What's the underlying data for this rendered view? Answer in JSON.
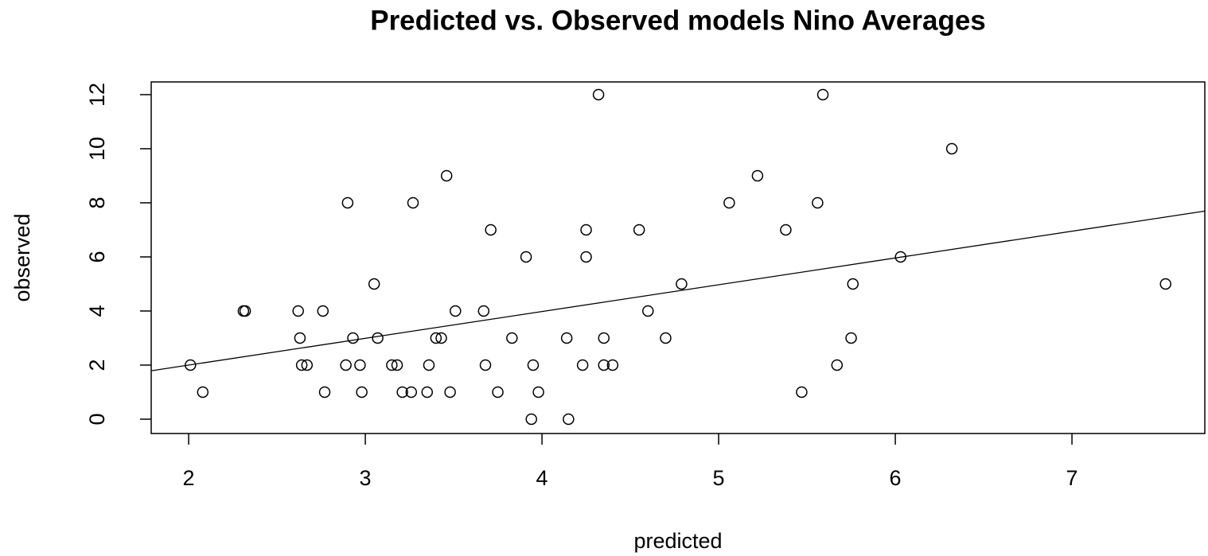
{
  "chart_data": {
    "type": "scatter",
    "title": "Predicted vs. Observed models Nino Averages",
    "xlabel": "predicted",
    "ylabel": "observed",
    "x": [
      2.01,
      2.08,
      2.31,
      2.32,
      2.62,
      2.63,
      2.64,
      2.67,
      2.76,
      2.77,
      2.89,
      2.9,
      2.93,
      2.97,
      2.98,
      3.05,
      3.07,
      3.15,
      3.18,
      3.21,
      3.26,
      3.27,
      3.35,
      3.36,
      3.4,
      3.43,
      3.46,
      3.48,
      3.51,
      3.67,
      3.68,
      3.71,
      3.75,
      3.83,
      3.91,
      3.94,
      3.95,
      3.98,
      4.14,
      4.15,
      4.23,
      4.25,
      4.25,
      4.32,
      4.35,
      4.35,
      4.4,
      4.55,
      4.6,
      4.7,
      4.79,
      5.06,
      5.22,
      5.38,
      5.47,
      5.56,
      5.59,
      5.67,
      5.75,
      5.76,
      6.03,
      6.32,
      7.53
    ],
    "values": [
      2,
      1,
      4,
      4,
      4,
      3,
      2,
      2,
      4,
      1,
      2,
      8,
      3,
      2,
      1,
      5,
      3,
      2,
      2,
      1,
      1,
      8,
      1,
      2,
      3,
      3,
      9,
      1,
      4,
      4,
      2,
      7,
      1,
      3,
      6,
      0,
      2,
      1,
      3,
      0,
      2,
      7,
      6,
      12,
      3,
      2,
      2,
      7,
      4,
      3,
      5,
      8,
      9,
      7,
      1,
      8,
      12,
      2,
      3,
      5,
      6,
      10,
      5
    ],
    "color": "#000000",
    "fit": {
      "intercept": 0.02,
      "slope": 0.99
    },
    "xlim": [
      1.788,
      7.752
    ],
    "ylim": [
      -0.53,
      12.47
    ],
    "xticks": [
      2,
      3,
      4,
      5,
      6,
      7
    ],
    "yticks": [
      0,
      2,
      4,
      6,
      8,
      10,
      12
    ]
  }
}
